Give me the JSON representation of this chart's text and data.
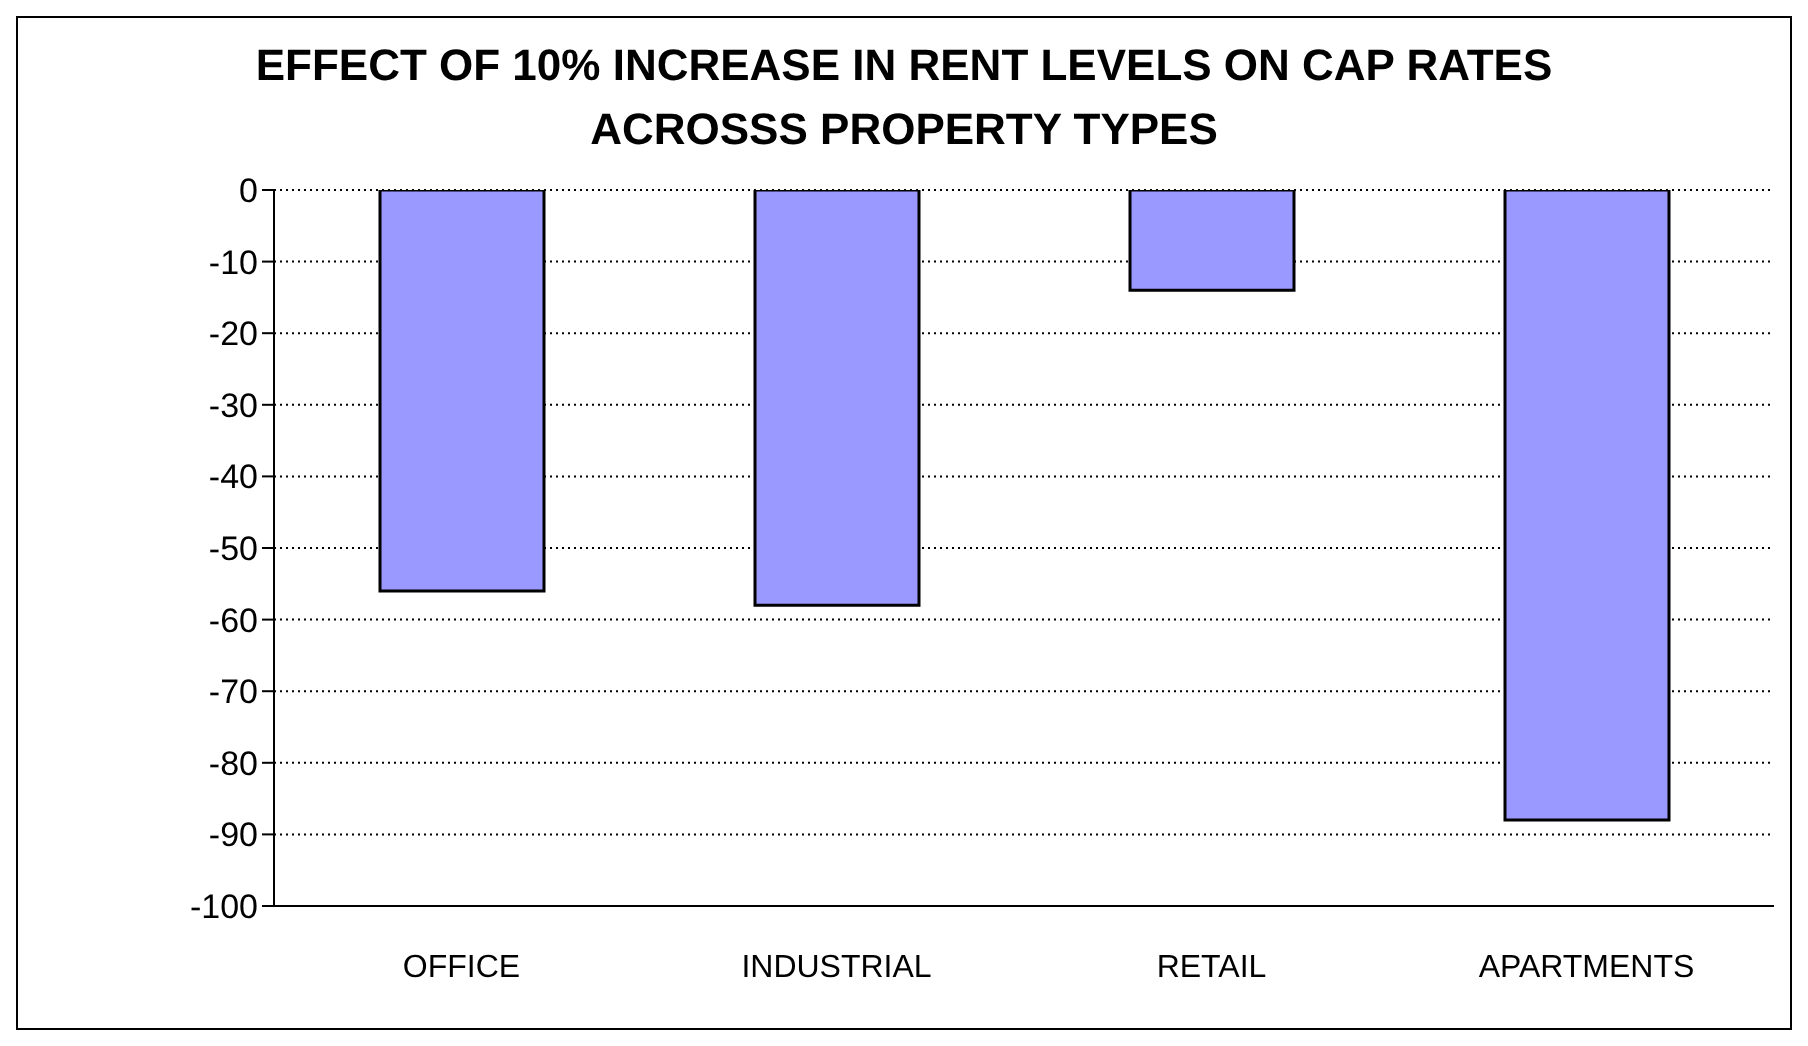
{
  "chart_data": {
    "type": "bar",
    "title": "EFFECT OF 10% INCREASE IN RENT LEVELS ON CAP RATES ACROSSS PROPERTY TYPES",
    "categories": [
      "OFFICE",
      "INDUSTRIAL",
      "RETAIL",
      "APARTMENTS"
    ],
    "values": [
      -56,
      -58,
      -14,
      -88
    ],
    "color": "#9999ff",
    "ylim": [
      -100,
      0
    ],
    "yticks": [
      -100,
      -90,
      -80,
      -70,
      -60,
      -50,
      -40,
      -30,
      -20,
      -10,
      0
    ],
    "grid": "y"
  }
}
